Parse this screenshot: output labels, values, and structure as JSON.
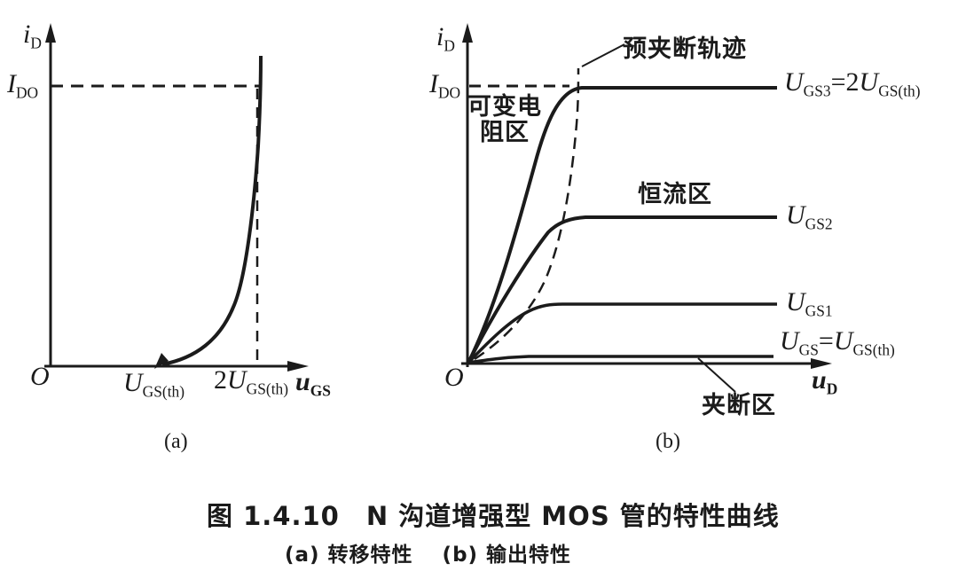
{
  "colors": {
    "ink": "#1b1b1b",
    "background": "#ffffff"
  },
  "caption": {
    "line1": "图 1.4.10　N 沟道增强型 MOS 管的特性曲线",
    "line2": "(a) 转移特性　 (b) 输出特性"
  },
  "panel_a": {
    "tag": "(a)",
    "origin": "O",
    "y_axis_label": [
      {
        "t": "i"
      },
      {
        "t": "D",
        "sub": true
      }
    ],
    "x_axis_label": [
      {
        "t": "u"
      },
      {
        "t": "GS",
        "sub": true
      }
    ],
    "ido_label": [
      {
        "t": "I"
      },
      {
        "t": "DO",
        "sub": true
      }
    ],
    "x_tick_ugsth": [
      {
        "t": "U"
      },
      {
        "t": "GS(th)",
        "sub": true
      }
    ],
    "x_tick_2ugsth": [
      {
        "t": "2",
        "up": true
      },
      {
        "t": "U"
      },
      {
        "t": "GS(th)",
        "sub": true
      }
    ]
  },
  "panel_b": {
    "tag": "(b)",
    "origin": "O",
    "y_axis_label": [
      {
        "t": "i"
      },
      {
        "t": "D",
        "sub": true
      }
    ],
    "x_axis_label": [
      {
        "t": "u"
      },
      {
        "t": "D",
        "sub": true
      }
    ],
    "ido_label": [
      {
        "t": "I"
      },
      {
        "t": "DO",
        "sub": true
      }
    ],
    "region_variable_resistance": {
      "line1": "可变电",
      "line2": "阻区"
    },
    "label_prepinchoff_locus": "预夹断轨迹",
    "region_constant_current": "恒流区",
    "region_pinchoff": "夹断区",
    "curve_label_ugs3": [
      {
        "t": "U"
      },
      {
        "t": "GS3",
        "sub": true
      },
      {
        "t": "=2",
        "up": true
      },
      {
        "t": "U"
      },
      {
        "t": "GS(th)",
        "sub": true
      }
    ],
    "curve_label_ugs2": [
      {
        "t": "U"
      },
      {
        "t": "GS2",
        "sub": true
      }
    ],
    "curve_label_ugs1": [
      {
        "t": "U"
      },
      {
        "t": "GS1",
        "sub": true
      }
    ],
    "curve_label_ugsth": [
      {
        "t": "U"
      },
      {
        "t": "GS",
        "sub": true
      },
      {
        "t": "=",
        "up": true
      },
      {
        "t": "U"
      },
      {
        "t": "GS(th)",
        "sub": true
      }
    ]
  },
  "chart_data": [
    {
      "panel": "a",
      "type": "line",
      "title": "转移特性 (transfer characteristic)",
      "xlabel": "u_GS",
      "ylabel": "i_D",
      "x_ticks": [
        "O",
        "U_GS(th)",
        "2U_GS(th)"
      ],
      "y_ticks": [
        "I_DO"
      ],
      "grid": false,
      "series": [
        {
          "name": "i_D vs u_GS (square law, u_GS ≥ U_GS(th))",
          "x_in_units_of_UGSth": [
            1.0,
            1.2,
            1.4,
            1.6,
            1.8,
            2.0,
            2.05
          ],
          "y_in_units_of_IDO": [
            0.0,
            0.04,
            0.16,
            0.36,
            0.64,
            1.0,
            1.12
          ]
        }
      ],
      "annotations": [
        "dashed horizontal guide at i_D = I_DO",
        "dashed vertical guide at u_GS = 2U_GS(th)",
        "arrowhead marks curve start at u_GS = U_GS(th)"
      ]
    },
    {
      "panel": "b",
      "type": "line",
      "title": "输出特性 (output characteristics)",
      "xlabel": "u_D",
      "ylabel": "i_D",
      "y_ticks": [
        "I_DO"
      ],
      "grid": false,
      "series": [
        {
          "name": "U_GS3 = 2U_GS(th)",
          "saturation_current_in_IDO": 1.0,
          "knee_x_fraction_of_axis": 0.3
        },
        {
          "name": "U_GS2",
          "saturation_current_in_IDO": 0.53,
          "knee_x_fraction_of_axis": 0.27
        },
        {
          "name": "U_GS1",
          "saturation_current_in_IDO": 0.21,
          "knee_x_fraction_of_axis": 0.23
        },
        {
          "name": "U_GS = U_GS(th)",
          "saturation_current_in_IDO": 0.03,
          "knee_x_fraction_of_axis": 0.12
        }
      ],
      "regions": [
        "可变电阻区",
        "恒流区",
        "夹断区"
      ],
      "annotations": [
        "dashed curve 预夹断轨迹 (pre-pinch-off locus) passes through the knees of all curves",
        "dashed horizontal guide at i_D = I_DO up to the locus"
      ]
    }
  ]
}
